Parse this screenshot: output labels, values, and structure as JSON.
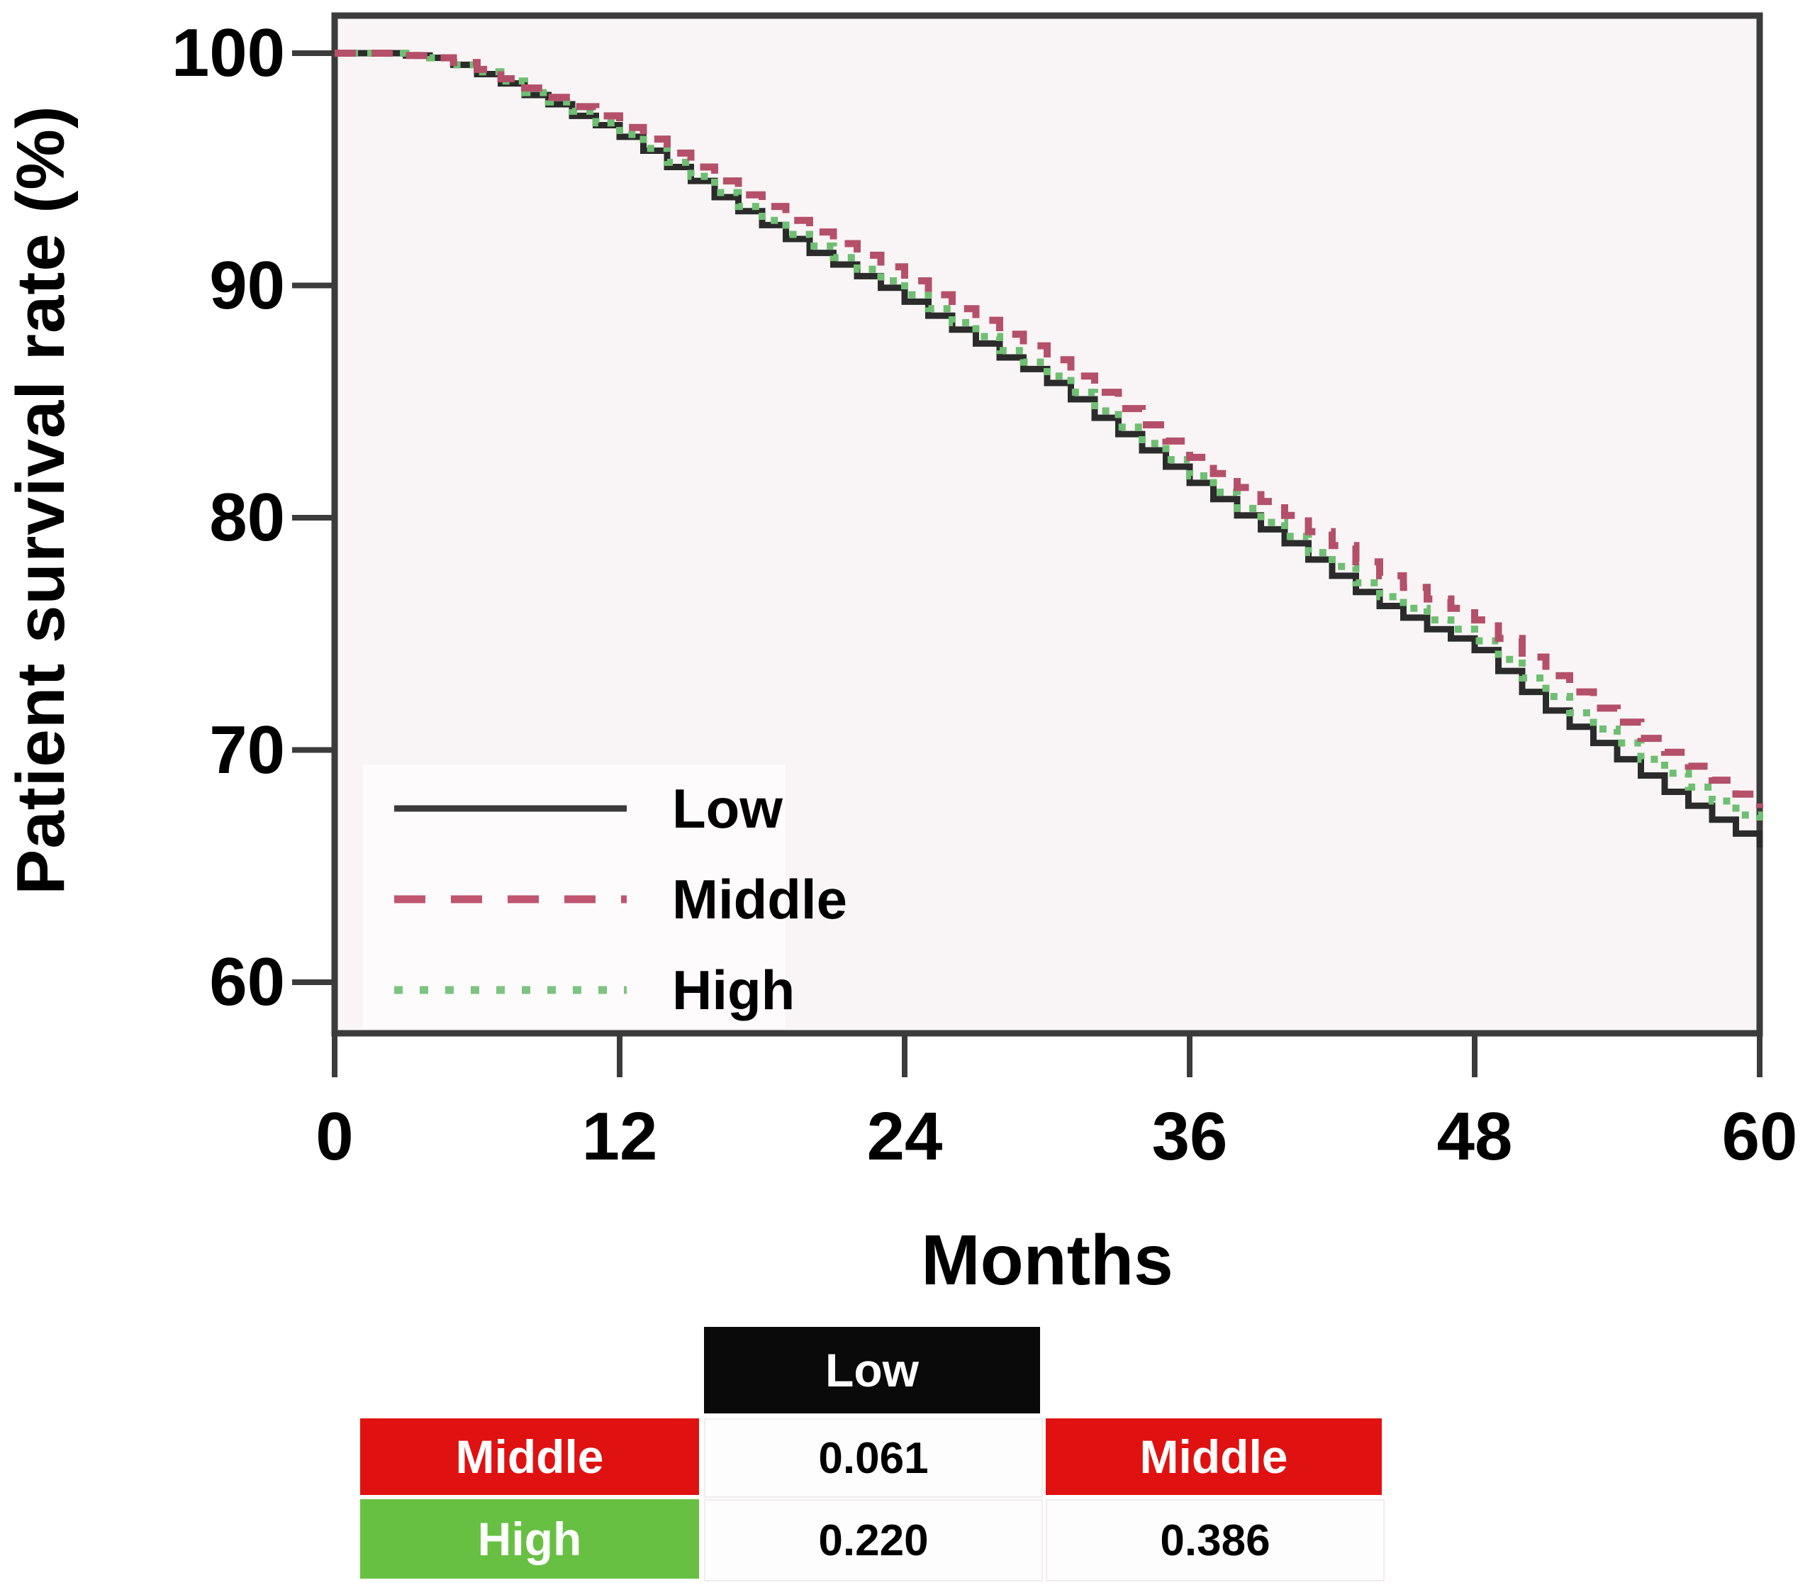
{
  "figure": {
    "y_axis_title": "Patient survival rate (%)",
    "x_axis_title": "Months"
  },
  "colors": {
    "page_bg": "#ffffff",
    "plot_bg": "#f9f5f6",
    "axis": "#3b3b3b",
    "low_curve": "#2b2b2b",
    "middle_curve": "#b5506a",
    "high_curve": "#6fbf72",
    "table_black": "#0a0a0a",
    "table_red": "#e01111",
    "table_green": "#68c043"
  },
  "legend": {
    "items": [
      {
        "label": "Low",
        "style": "solid",
        "color": "#3b3b3b"
      },
      {
        "label": "Middle",
        "style": "dashed",
        "color": "#c05570"
      },
      {
        "label": "High",
        "style": "dotted",
        "color": "#7cc47f"
      }
    ]
  },
  "chart_data": {
    "type": "line",
    "subtype": "kaplan-meier-step",
    "title": "",
    "xlabel": "Months",
    "ylabel": "Patient survival rate (%)",
    "xlim": [
      0,
      60
    ],
    "ylim": [
      58,
      101
    ],
    "x_ticks": [
      0,
      12,
      24,
      36,
      48,
      60
    ],
    "y_ticks": [
      100,
      90,
      80,
      70,
      60
    ],
    "grid": false,
    "legend_position": "inside-lower-left",
    "months": [
      0,
      1,
      2,
      3,
      4,
      5,
      6,
      7,
      8,
      9,
      10,
      11,
      12,
      13,
      14,
      15,
      16,
      17,
      18,
      19,
      20,
      21,
      22,
      23,
      24,
      25,
      26,
      27,
      28,
      29,
      30,
      31,
      32,
      33,
      34,
      35,
      36,
      37,
      38,
      39,
      40,
      41,
      42,
      43,
      44,
      45,
      46,
      47,
      48,
      49,
      50,
      51,
      52,
      53,
      54,
      55,
      56,
      57,
      58,
      59,
      60
    ],
    "series": [
      {
        "name": "Low",
        "color": "#2b2b2b",
        "style": "solid",
        "values": [
          100,
          100,
          100,
          99.9,
          99.8,
          99.5,
          99.1,
          98.7,
          98.2,
          97.8,
          97.3,
          96.9,
          96.4,
          95.8,
          95.1,
          94.5,
          93.8,
          93.2,
          92.6,
          92.0,
          91.4,
          90.9,
          90.4,
          89.9,
          89.3,
          88.7,
          88.1,
          87.5,
          86.9,
          86.4,
          85.8,
          85.1,
          84.3,
          83.6,
          82.9,
          82.2,
          81.5,
          80.8,
          80.1,
          79.5,
          78.9,
          78.2,
          77.5,
          76.8,
          76.2,
          75.7,
          75.2,
          74.8,
          74.3,
          73.4,
          72.5,
          71.7,
          71.0,
          70.3,
          69.6,
          68.9,
          68.2,
          67.6,
          67.0,
          66.4,
          65.8
        ]
      },
      {
        "name": "Middle",
        "color": "#b5506a",
        "style": "dashed",
        "values": [
          100,
          100,
          100,
          99.9,
          99.8,
          99.6,
          99.3,
          98.9,
          98.5,
          98.1,
          97.7,
          97.3,
          96.8,
          96.3,
          95.7,
          95.1,
          94.5,
          93.9,
          93.4,
          92.8,
          92.3,
          91.8,
          91.3,
          90.8,
          90.2,
          89.6,
          89.0,
          88.5,
          87.9,
          87.4,
          86.8,
          86.1,
          85.4,
          84.7,
          84.0,
          83.3,
          82.6,
          81.9,
          81.3,
          80.7,
          80.1,
          79.4,
          78.8,
          78.1,
          77.5,
          77.0,
          76.5,
          76.1,
          75.6,
          74.8,
          74.0,
          73.2,
          72.5,
          71.8,
          71.2,
          70.5,
          69.9,
          69.3,
          68.7,
          68.1,
          67.5
        ]
      },
      {
        "name": "High",
        "color": "#6fbf72",
        "style": "dotted",
        "values": [
          100,
          100,
          100,
          99.9,
          99.8,
          99.5,
          99.2,
          98.8,
          98.3,
          97.9,
          97.5,
          97.0,
          96.5,
          95.9,
          95.3,
          94.7,
          94.0,
          93.4,
          92.8,
          92.2,
          91.7,
          91.2,
          90.7,
          90.2,
          89.6,
          89.0,
          88.4,
          87.8,
          87.2,
          86.7,
          86.1,
          85.4,
          84.6,
          83.9,
          83.2,
          82.5,
          81.8,
          81.1,
          80.4,
          79.8,
          79.2,
          78.5,
          77.9,
          77.2,
          76.6,
          76.1,
          75.6,
          75.2,
          74.7,
          73.9,
          73.1,
          72.3,
          71.6,
          70.9,
          70.3,
          69.6,
          69.0,
          68.4,
          67.8,
          67.2,
          66.7
        ]
      }
    ],
    "pairwise_p_values": {
      "middle_vs_low": 0.061,
      "high_vs_low": 0.22,
      "high_vs_middle": 0.386
    }
  },
  "pvalue_table": {
    "col_header": {
      "label": "Low",
      "bg": "#0a0a0a"
    },
    "row_middle": {
      "header": "Middle",
      "header_bg": "#e01111",
      "p_vs_low": "0.061",
      "second_header": "Middle",
      "second_header_bg": "#e01111"
    },
    "row_high": {
      "header": "High",
      "header_bg": "#68c043",
      "p_vs_low": "0.220",
      "p_vs_middle": "0.386"
    }
  }
}
